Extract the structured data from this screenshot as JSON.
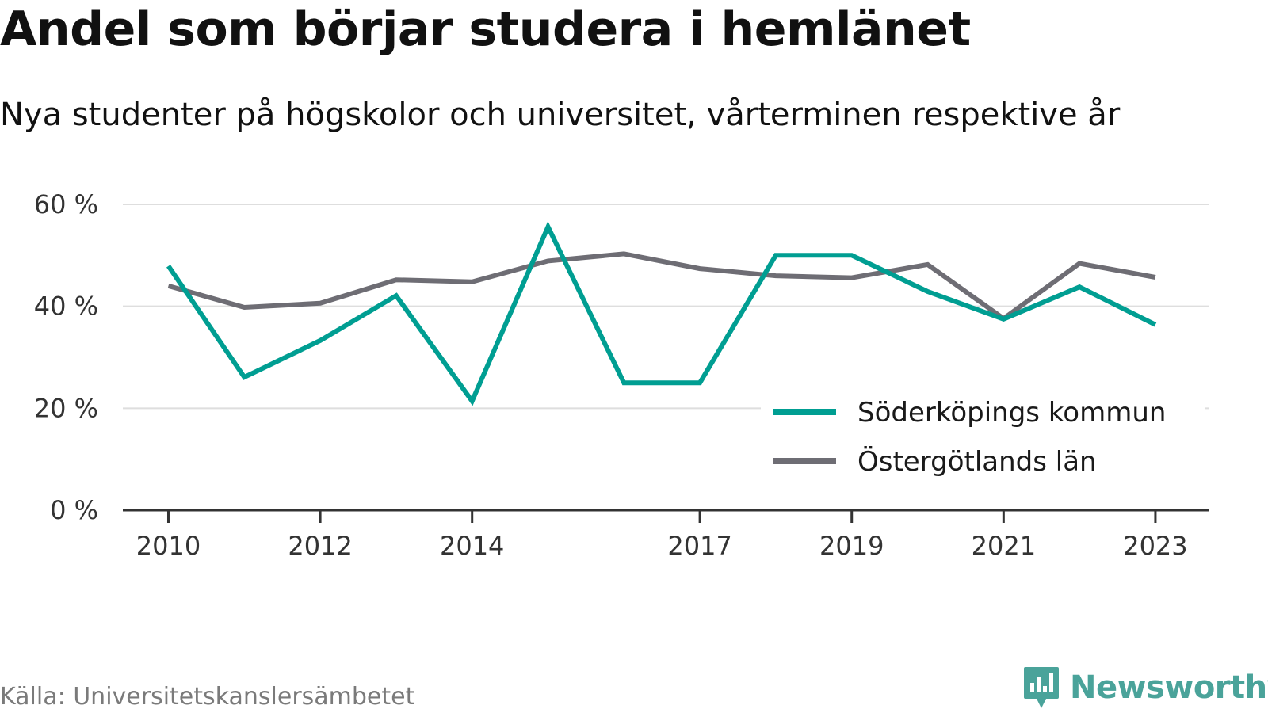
{
  "title": "Andel som börjar studera i hemlänet",
  "subtitle": "Nya studenter på högskolor och universitet, vårterminen respektive år",
  "source": "Källa: Universitetskanslersämbetet",
  "brand": {
    "name": "Newsworthy",
    "color": "#4aa39a",
    "icon": "newsworthy-logo-icon"
  },
  "colors": {
    "grid": "#dedede",
    "axis": "#333333",
    "text": "#333333"
  },
  "chart_data": {
    "type": "line",
    "title": "Andel som börjar studera i hemlänet",
    "subtitle": "Nya studenter på högskolor och universitet, vårterminen respektive år",
    "xlabel": "",
    "ylabel": "",
    "x": [
      2010,
      2011,
      2012,
      2013,
      2014,
      2015,
      2016,
      2017,
      2018,
      2019,
      2020,
      2021,
      2022,
      2023
    ],
    "x_tick_values": [
      2010,
      2012,
      2014,
      2017,
      2019,
      2021,
      2023
    ],
    "x_tick_labels": [
      "2010",
      "2012",
      "2014",
      "2017",
      "2019",
      "2021",
      "2023"
    ],
    "xlim": [
      2009.4,
      2023.7
    ],
    "y_tick_values": [
      0,
      20,
      40,
      60
    ],
    "y_tick_labels": [
      "0 %",
      "20 %",
      "40 %",
      "60 %"
    ],
    "ylim": [
      0,
      60
    ],
    "grid": true,
    "legend_position": "bottom-right",
    "series": [
      {
        "name": "Söderköpings kommun",
        "color": "#009e92",
        "values": [
          47.9,
          26.1,
          33.3,
          42.1,
          21.4,
          55.6,
          25.0,
          25.0,
          50.0,
          50.0,
          42.9,
          37.5,
          43.8,
          36.4
        ]
      },
      {
        "name": "Östergötlands län",
        "color": "#6e6d74",
        "values": [
          44.0,
          39.8,
          40.6,
          45.2,
          44.8,
          48.9,
          50.3,
          47.4,
          46.0,
          45.6,
          48.2,
          37.6,
          48.4,
          45.7
        ]
      }
    ]
  }
}
